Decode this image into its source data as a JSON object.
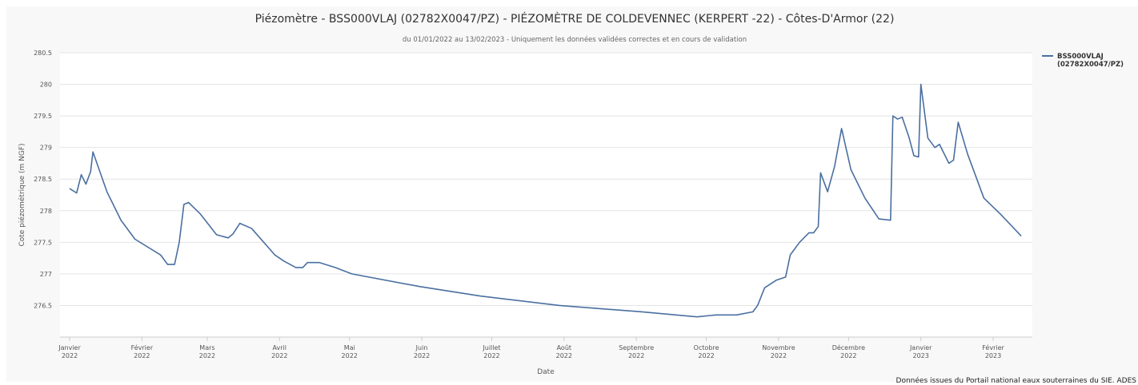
{
  "chart_data": {
    "type": "line",
    "title": "Piézomètre - BSS000VLAJ (02782X0047/PZ) - PIÉZOMÈTRE DE COLDEVENNEC (KERPERT -22) - Côtes-D'Armor (22)",
    "subtitle": "du 01/01/2022 au 13/02/2023 - Uniquement les données validées correctes et en cours de validation",
    "x_label": "Date",
    "y_label": "Cote piézométrique (m NGF)",
    "credit": "Données issues du Portail national eaux souterraines du SIE. ADES",
    "legend": "right",
    "grid": true,
    "xlim": [
      "2022-01-01",
      "2023-02-13"
    ],
    "xticks": [
      {
        "value": "2022-01-01",
        "label": "Janvier 2022"
      },
      {
        "value": "2022-02-01",
        "label": "Février 2022"
      },
      {
        "value": "2022-03-01",
        "label": "Mars 2022"
      },
      {
        "value": "2022-04-01",
        "label": "Avril 2022"
      },
      {
        "value": "2022-05-01",
        "label": "Mai 2022"
      },
      {
        "value": "2022-06-01",
        "label": "Juin 2022"
      },
      {
        "value": "2022-07-01",
        "label": "Juillet 2022"
      },
      {
        "value": "2022-08-01",
        "label": "Août 2022"
      },
      {
        "value": "2022-09-01",
        "label": "Septembre 2022"
      },
      {
        "value": "2022-10-01",
        "label": "Octobre 2022"
      },
      {
        "value": "2022-11-01",
        "label": "Novembre 2022"
      },
      {
        "value": "2022-12-01",
        "label": "Décembre 2022"
      },
      {
        "value": "2023-01-01",
        "label": "Janvier 2023"
      },
      {
        "value": "2023-02-01",
        "label": "Février 2023"
      }
    ],
    "ylim": [
      276,
      280.5
    ],
    "yticks": [
      276.5,
      277,
      277.5,
      278,
      278.5,
      279,
      279.5,
      280,
      280.5
    ],
    "x": [
      "2022-01-01",
      "2022-01-04",
      "2022-01-06",
      "2022-01-08",
      "2022-01-10",
      "2022-01-11",
      "2022-01-17",
      "2022-01-23",
      "2022-01-29",
      "2022-02-09",
      "2022-02-12",
      "2022-02-15",
      "2022-02-17",
      "2022-02-19",
      "2022-02-21",
      "2022-02-26",
      "2022-03-05",
      "2022-03-10",
      "2022-03-12",
      "2022-03-15",
      "2022-03-20",
      "2022-03-30",
      "2022-04-03",
      "2022-04-08",
      "2022-04-11",
      "2022-04-13",
      "2022-04-18",
      "2022-04-25",
      "2022-05-02",
      "2022-05-31",
      "2022-06-26",
      "2022-07-30",
      "2022-09-03",
      "2022-09-27",
      "2022-10-05",
      "2022-10-14",
      "2022-10-21",
      "2022-10-23",
      "2022-10-26",
      "2022-10-31",
      "2022-11-04",
      "2022-11-06",
      "2022-11-10",
      "2022-11-14",
      "2022-11-16",
      "2022-11-18",
      "2022-11-19",
      "2022-11-22",
      "2022-11-25",
      "2022-11-28",
      "2022-12-02",
      "2022-12-08",
      "2022-12-14",
      "2022-12-19",
      "2022-12-20",
      "2022-12-22",
      "2022-12-24",
      "2022-12-27",
      "2022-12-29",
      "2022-12-31",
      "2023-01-01",
      "2023-01-04",
      "2023-01-07",
      "2023-01-09",
      "2023-01-13",
      "2023-01-15",
      "2023-01-17",
      "2023-01-21",
      "2023-01-28",
      "2023-02-04",
      "2023-02-13"
    ],
    "series": [
      {
        "name": "BSS000VLAJ (02782X0047/PZ)",
        "color": "#4a6fa0",
        "values": [
          278.35,
          278.28,
          278.57,
          278.42,
          278.62,
          278.93,
          278.3,
          277.85,
          277.55,
          277.3,
          277.15,
          277.15,
          277.5,
          278.1,
          278.13,
          277.95,
          277.62,
          277.57,
          277.63,
          277.8,
          277.72,
          277.3,
          277.2,
          277.1,
          277.1,
          277.18,
          277.18,
          277.1,
          277.0,
          276.8,
          276.65,
          276.5,
          276.4,
          276.32,
          276.35,
          276.35,
          276.4,
          276.5,
          276.78,
          276.9,
          276.95,
          277.3,
          277.5,
          277.65,
          277.65,
          277.75,
          278.6,
          278.3,
          278.7,
          279.3,
          278.65,
          278.2,
          277.87,
          277.85,
          279.5,
          279.45,
          279.48,
          279.15,
          278.87,
          278.85,
          280.0,
          279.15,
          279.0,
          279.05,
          278.75,
          278.8,
          279.4,
          278.9,
          278.2,
          277.95,
          277.6
        ]
      }
    ]
  }
}
